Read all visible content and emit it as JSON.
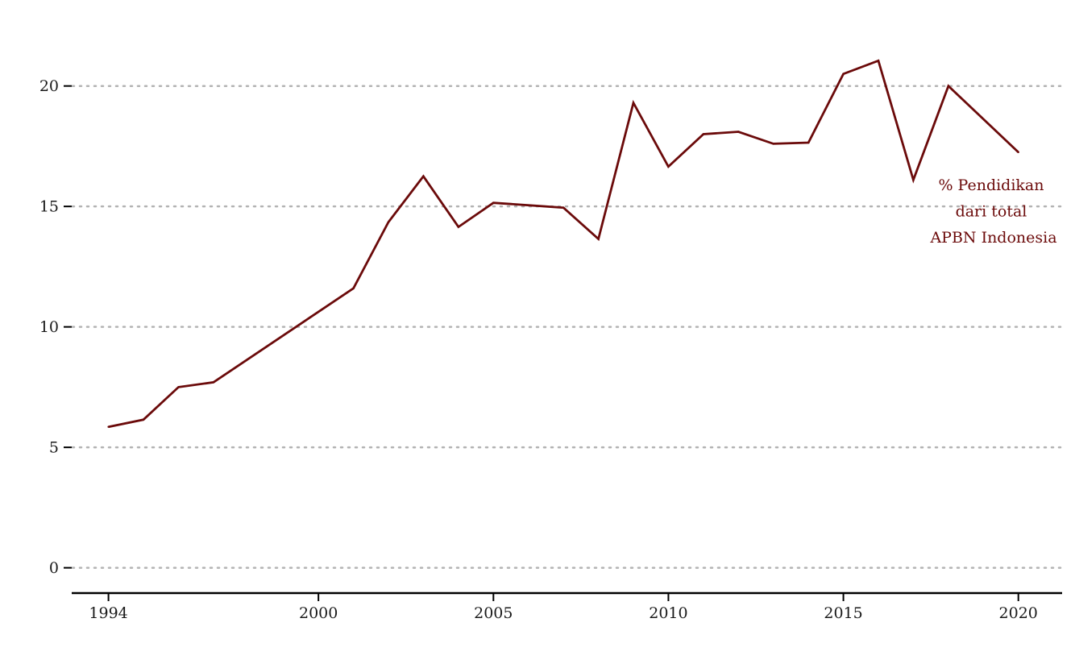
{
  "chart_data": {
    "type": "line",
    "title": "",
    "xlabel": "",
    "ylabel": "",
    "x": [
      1994,
      1995,
      1996,
      1997,
      2001,
      2002,
      2003,
      2004,
      2005,
      2007,
      2008,
      2009,
      2010,
      2011,
      2012,
      2013,
      2014,
      2015,
      2016,
      2017,
      2018,
      2020
    ],
    "series": [
      {
        "name": "% Pendidikan dari total APBN Indonesia",
        "color": "#6b0a0a",
        "values": [
          5.85,
          6.15,
          7.5,
          7.7,
          11.6,
          14.35,
          16.25,
          14.15,
          15.15,
          14.95,
          13.65,
          19.3,
          16.65,
          18.0,
          18.1,
          17.6,
          17.65,
          20.5,
          21.05,
          16.1,
          20.0,
          17.25
        ]
      }
    ],
    "annotation": {
      "lines": [
        "% Pendidikan",
        "dari total",
        "APBN Indonesia"
      ],
      "color": "#6b0a0a"
    },
    "x_ticks": [
      1994,
      2000,
      2005,
      2010,
      2015,
      2020
    ],
    "x_tick_labels": [
      "1994",
      "2000",
      "2005",
      "2010",
      "2015",
      "2020"
    ],
    "y_ticks": [
      0,
      5,
      10,
      15,
      20
    ],
    "y_tick_labels": [
      "0",
      "5",
      "10",
      "15",
      "20"
    ],
    "xlim": [
      1992.95,
      2021.25
    ],
    "ylim": [
      -1.05,
      22.9
    ],
    "grid": "horizontal dotted",
    "grid_color": "#b3b3b3",
    "axis_color": "#000000"
  }
}
